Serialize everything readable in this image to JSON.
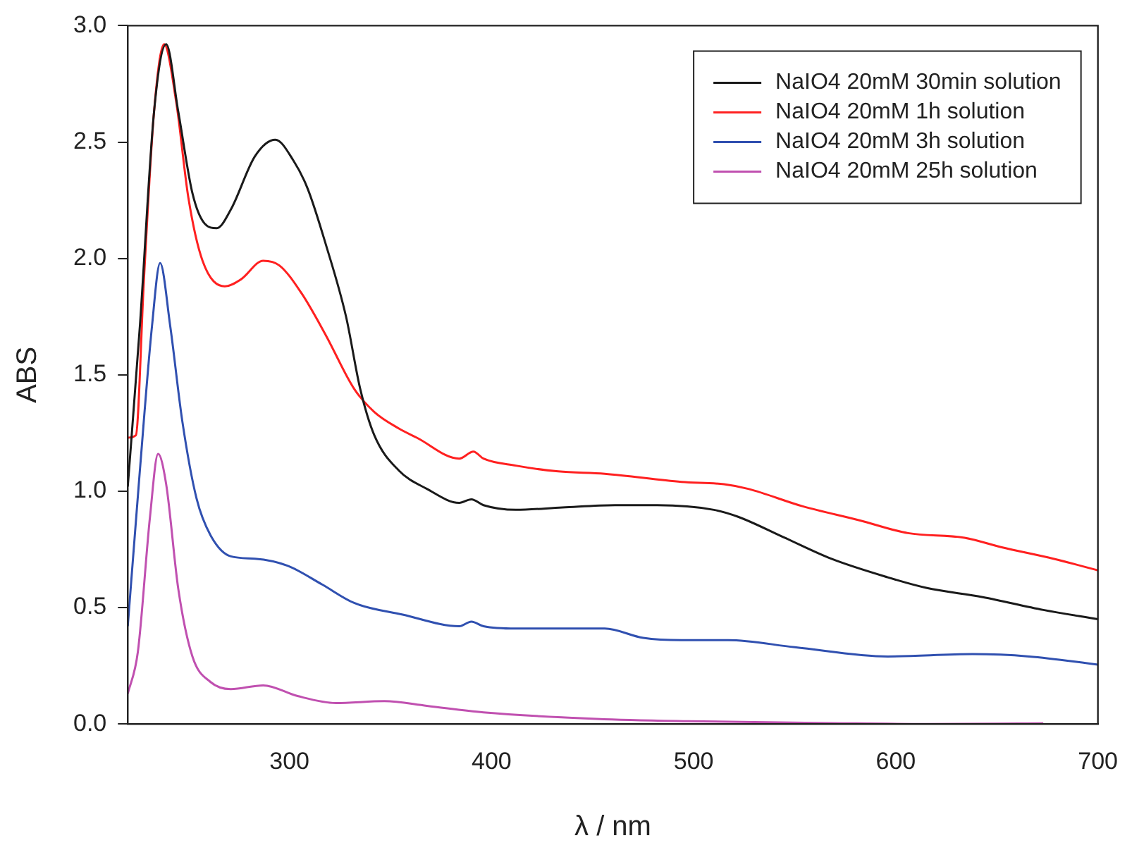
{
  "chart_data": {
    "type": "line",
    "xlabel": "λ / nm",
    "ylabel": "ABS",
    "xlim": [
      220,
      700
    ],
    "xticks": [
      300,
      400,
      500,
      600,
      700
    ],
    "ylim": [
      0,
      3
    ],
    "yticks": [
      {
        "value": 0,
        "label": "0.0"
      },
      {
        "value": 0.5,
        "label": "0.5"
      },
      {
        "value": 1,
        "label": "1.0"
      },
      {
        "value": 1.5,
        "label": "1.5"
      },
      {
        "value": 2,
        "label": "2.0"
      },
      {
        "value": 2.5,
        "label": "2.5"
      },
      {
        "value": 3,
        "label": "3.0"
      }
    ],
    "legend": "top right",
    "series": [
      {
        "name": "NaIO4 20mM 30min solution",
        "color": "#1a1a1a",
        "x": [
          220,
          226,
          233,
          239,
          245,
          252,
          258,
          264,
          271,
          283,
          293,
          302,
          309,
          318,
          328,
          335,
          342,
          354,
          368,
          384,
          390,
          396,
          412,
          435,
          461,
          482,
          510,
          522,
          545,
          568,
          596,
          615,
          643,
          673,
          700
        ],
        "values": [
          1.02,
          1.71,
          2.63,
          2.92,
          2.63,
          2.28,
          2.15,
          2.13,
          2.21,
          2.44,
          2.51,
          2.42,
          2.3,
          2.06,
          1.75,
          1.44,
          1.24,
          1.09,
          1.01,
          0.95,
          0.965,
          0.94,
          0.92,
          0.93,
          0.94,
          0.94,
          0.92,
          0.89,
          0.8,
          0.71,
          0.63,
          0.585,
          0.545,
          0.49,
          0.45
        ]
      },
      {
        "name": "NaIO4 20mM 1h solution",
        "color": "#ff2020",
        "x": [
          220,
          224,
          228,
          233,
          238,
          244,
          250,
          257,
          268,
          276,
          287,
          295,
          306,
          318,
          332,
          342,
          354,
          363,
          384,
          391,
          396,
          412,
          433,
          456,
          494,
          515,
          527,
          554,
          582,
          606,
          634,
          652,
          678,
          700
        ],
        "values": [
          1.23,
          1.24,
          1.91,
          2.63,
          2.92,
          2.67,
          2.26,
          1.99,
          1.88,
          1.91,
          1.99,
          1.97,
          1.85,
          1.67,
          1.44,
          1.34,
          1.27,
          1.23,
          1.14,
          1.17,
          1.14,
          1.11,
          1.085,
          1.075,
          1.04,
          1.03,
          1.01,
          0.935,
          0.875,
          0.82,
          0.8,
          0.76,
          0.71,
          0.66
        ]
      },
      {
        "name": "NaIO4 20mM 3h solution",
        "color": "#3050b0",
        "x": [
          220,
          226,
          232,
          236,
          241,
          247,
          254,
          261,
          271,
          283,
          299,
          316,
          332,
          356,
          384,
          390,
          396,
          412,
          456,
          475,
          494,
          517,
          550,
          596,
          638,
          666,
          700
        ],
        "values": [
          0.42,
          1.09,
          1.71,
          1.98,
          1.71,
          1.3,
          0.97,
          0.81,
          0.72,
          0.71,
          0.68,
          0.6,
          0.52,
          0.47,
          0.42,
          0.44,
          0.42,
          0.41,
          0.41,
          0.37,
          0.36,
          0.36,
          0.33,
          0.29,
          0.3,
          0.29,
          0.255
        ]
      },
      {
        "name": "NaIO4 20mM 25h solution",
        "color": "#c050b0",
        "x": [
          220,
          225,
          231,
          235,
          239,
          245,
          252,
          261,
          271,
          287,
          304,
          323,
          347,
          368,
          396,
          452,
          497,
          568,
          615,
          661,
          673
        ],
        "values": [
          0.13,
          0.31,
          0.89,
          1.16,
          1.03,
          0.58,
          0.29,
          0.18,
          0.15,
          0.166,
          0.12,
          0.09,
          0.098,
          0.078,
          0.05,
          0.022,
          0.012,
          0.004,
          0,
          0.002,
          0.003
        ]
      }
    ]
  }
}
